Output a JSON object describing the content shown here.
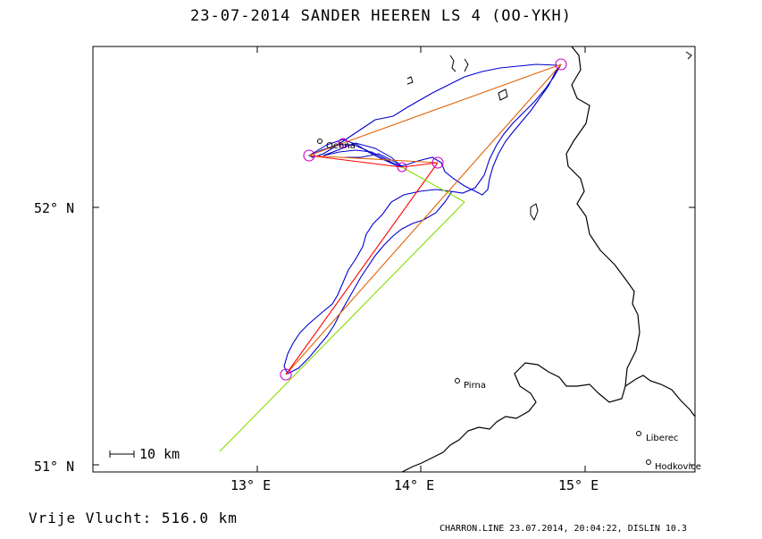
{
  "title": "23-07-2014    SANDER HEEREN    LS 4 (OO-YKH)",
  "footer": {
    "distance": "Vrije Vlucht:  516.0 km",
    "credit": "CHARRON.LINE 23.07.2014, 20:04:22, DISLIN 10.3"
  },
  "axes": {
    "lon_ticks": [
      "13° E",
      "14° E",
      "15° E"
    ],
    "lat_ticks": [
      "52° N",
      "51° N"
    ]
  },
  "scale_bar": "10 km",
  "cities": [
    "Oehna",
    "Pirna",
    "Liberec",
    "Hodkovice"
  ],
  "colors": {
    "track": "#0000cc",
    "leg": "#e06000",
    "triangle": "#ff0000",
    "alt": "#88dd00",
    "turnpoint": "#cc00cc",
    "border": "#000000"
  }
}
